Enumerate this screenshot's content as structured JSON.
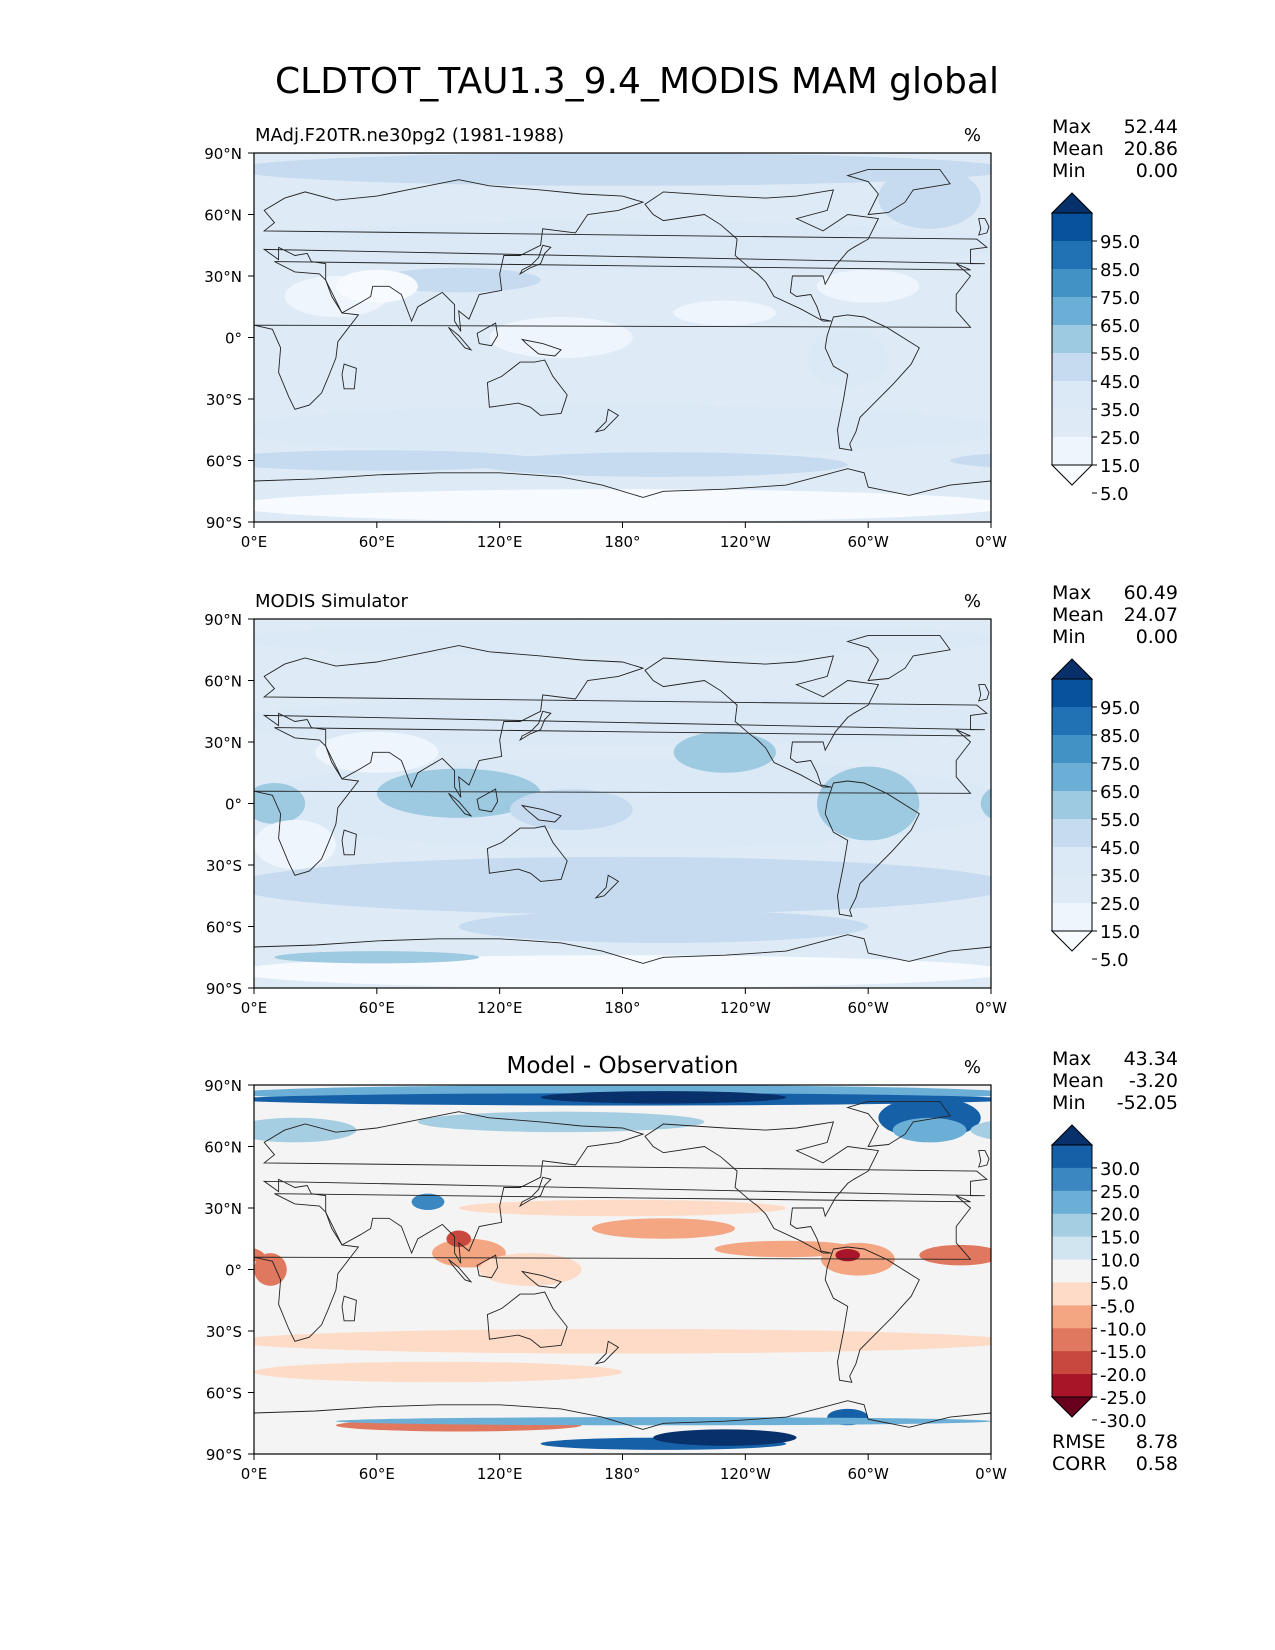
{
  "figure": {
    "title": "CLDTOT_TAU1.3_9.4_MODIS MAM global"
  },
  "chart_data": [
    {
      "type": "heatmap",
      "title": "MAdj.F20TR.ne30pg2 (1981-1988)",
      "units": "%",
      "stats": [
        {
          "label": "Max",
          "value": "52.44"
        },
        {
          "label": "Mean",
          "value": "20.86"
        },
        {
          "label": "Min",
          "value": "0.00"
        }
      ],
      "colorbar_levels": [
        "95.0",
        "85.0",
        "75.0",
        "65.0",
        "55.0",
        "45.0",
        "35.0",
        "25.0",
        "15.0",
        "5.0"
      ],
      "colorbar_colors": [
        "#08306b",
        "#08519c",
        "#2171b5",
        "#4292c6",
        "#6baed6",
        "#9ecae1",
        "#c6dbef",
        "#dbe9f6",
        "#deebf7",
        "#eef5fc",
        "#f7fbff"
      ],
      "xticks": [
        "0°E",
        "60°E",
        "120°E",
        "180°",
        "120°W",
        "60°W",
        "0°W"
      ],
      "yticks": [
        "90°N",
        "60°N",
        "30°N",
        "0°",
        "30°S",
        "60°S",
        "90°S"
      ],
      "xlim": [
        0,
        360
      ],
      "ylim": [
        -90,
        90
      ]
    },
    {
      "type": "heatmap",
      "title": "MODIS Simulator",
      "units": "%",
      "stats": [
        {
          "label": "Max",
          "value": "60.49"
        },
        {
          "label": "Mean",
          "value": "24.07"
        },
        {
          "label": "Min",
          "value": "0.00"
        }
      ],
      "colorbar_levels": [
        "95.0",
        "85.0",
        "75.0",
        "65.0",
        "55.0",
        "45.0",
        "35.0",
        "25.0",
        "15.0",
        "5.0"
      ],
      "colorbar_colors": [
        "#08306b",
        "#08519c",
        "#2171b5",
        "#4292c6",
        "#6baed6",
        "#9ecae1",
        "#c6dbef",
        "#dbe9f6",
        "#deebf7",
        "#eef5fc",
        "#f7fbff"
      ],
      "xticks": [
        "0°E",
        "60°E",
        "120°E",
        "180°",
        "120°W",
        "60°W",
        "0°W"
      ],
      "yticks": [
        "90°N",
        "60°N",
        "30°N",
        "0°",
        "30°S",
        "60°S",
        "90°S"
      ],
      "xlim": [
        0,
        360
      ],
      "ylim": [
        -90,
        90
      ]
    },
    {
      "type": "heatmap",
      "title": "Model - Observation",
      "units": "%",
      "stats": [
        {
          "label": "Max",
          "value": "43.34"
        },
        {
          "label": "Mean",
          "value": "-3.20"
        },
        {
          "label": "Min",
          "value": "-52.05"
        }
      ],
      "extra_stats": [
        {
          "label": "RMSE",
          "value": "8.78"
        },
        {
          "label": "CORR",
          "value": "0.58"
        }
      ],
      "colorbar_levels": [
        "30.0",
        "25.0",
        "20.0",
        "15.0",
        "10.0",
        "5.0",
        "-5.0",
        "-10.0",
        "-15.0",
        "-20.0",
        "-25.0",
        "-30.0"
      ],
      "colorbar_colors": [
        "#08306b",
        "#1660a8",
        "#3b87c2",
        "#6baed6",
        "#a6cee3",
        "#d1e5f0",
        "#f4f4f4",
        "#fddbc7",
        "#f4a582",
        "#e0785f",
        "#c8473f",
        "#a81529",
        "#67001f"
      ],
      "xticks": [
        "0°E",
        "60°E",
        "120°E",
        "180°",
        "120°W",
        "60°W",
        "0°W"
      ],
      "yticks": [
        "90°N",
        "60°N",
        "30°N",
        "0°",
        "30°S",
        "60°S",
        "90°S"
      ],
      "xlim": [
        0,
        360
      ],
      "ylim": [
        -90,
        90
      ]
    }
  ]
}
